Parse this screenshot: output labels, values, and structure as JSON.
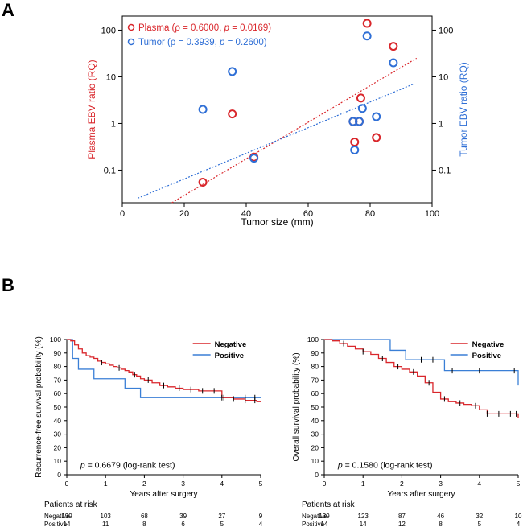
{
  "panel_labels": {
    "a": "A",
    "b": "B"
  },
  "colors": {
    "plasma": "#d9262b",
    "tumor": "#2f6fd6",
    "negative": "#d9262b",
    "positive": "#3a7fd6",
    "censor": "#000000"
  },
  "chart_data": [
    {
      "id": "scatter",
      "type": "scatter",
      "xlabel": "Tumor size (mm)",
      "ylabel_left": "Plasma EBV ratio (RQ)",
      "ylabel_right": "Tumor EBV ratio (RQ)",
      "x_range": [
        0,
        100
      ],
      "y_scale": "log",
      "y_range": [
        0.02,
        200
      ],
      "x_ticks": [
        0,
        20,
        40,
        60,
        80,
        100
      ],
      "y_ticks": [
        {
          "value": 0.1,
          "label": "0.1"
        },
        {
          "value": 1,
          "label": "1"
        },
        {
          "value": 10,
          "label": "10"
        },
        {
          "value": 100,
          "label": "100"
        }
      ],
      "legend": [
        {
          "series": "plasma",
          "prefix": "Plasma (",
          "rho_label": "ρ = 0.6000, ",
          "p_symbol": "p",
          "p_label": " = 0.0169)"
        },
        {
          "series": "tumor",
          "prefix": "Tumor (",
          "rho_label": "ρ = 0.3939, ",
          "p_symbol": "p",
          "p_label": " = 0.2600)"
        }
      ],
      "series": [
        {
          "name": "Plasma",
          "key": "plasma",
          "points": [
            [
              26,
              0.055
            ],
            [
              35.5,
              1.6
            ],
            [
              42.5,
              0.19
            ],
            [
              74.5,
              1.1
            ],
            [
              75,
              0.4
            ],
            [
              76.5,
              1.1
            ],
            [
              77,
              3.5
            ],
            [
              79,
              140
            ],
            [
              82,
              0.5
            ],
            [
              87.5,
              45
            ]
          ]
        },
        {
          "name": "Tumor",
          "key": "tumor",
          "points": [
            [
              26,
              2.0
            ],
            [
              35.5,
              13
            ],
            [
              42.5,
              0.18
            ],
            [
              74.5,
              1.1
            ],
            [
              75,
              0.27
            ],
            [
              76.5,
              1.1
            ],
            [
              77.5,
              2.1
            ],
            [
              79,
              75
            ],
            [
              82,
              1.4
            ],
            [
              87.5,
              20
            ]
          ]
        }
      ],
      "trendlines": [
        {
          "key": "plasma",
          "from": [
            16,
            0.02
          ],
          "to": [
            95,
            25
          ]
        },
        {
          "key": "tumor",
          "from": [
            5,
            0.025
          ],
          "to": [
            94,
            7
          ]
        }
      ]
    },
    {
      "id": "km_rfs",
      "type": "line",
      "ylabel": "Recurrence-free survival probability (%)",
      "xlabel": "Years after surgery",
      "x_range": [
        0,
        5
      ],
      "y_range": [
        0,
        100
      ],
      "x_ticks": [
        0,
        1,
        2,
        3,
        4,
        5
      ],
      "y_ticks": [
        0,
        10,
        20,
        30,
        40,
        50,
        60,
        70,
        80,
        90,
        100
      ],
      "legend": [
        "Negative",
        "Positive"
      ],
      "annotation": {
        "p": "p",
        "text": " = 0.6679 (log-rank test)"
      },
      "series": [
        {
          "name": "Negative",
          "key": "negative",
          "x": [
            0,
            0.1,
            0.2,
            0.3,
            0.4,
            0.5,
            0.6,
            0.7,
            0.8,
            0.9,
            1.0,
            1.1,
            1.2,
            1.3,
            1.4,
            1.5,
            1.6,
            1.7,
            1.8,
            1.9,
            2.0,
            2.2,
            2.4,
            2.6,
            2.8,
            3.0,
            3.2,
            3.4,
            3.6,
            3.8,
            4.0,
            4.3,
            4.6,
            4.9,
            5.0
          ],
          "y": [
            100,
            99,
            96,
            93,
            90,
            88,
            87,
            86,
            84,
            83,
            82,
            81,
            80,
            79,
            78,
            77,
            76,
            74,
            73,
            71,
            70,
            68,
            66,
            65,
            64,
            63,
            63,
            62,
            62,
            62,
            57,
            56,
            55,
            54,
            54
          ],
          "censor": [
            0.9,
            1.35,
            1.75,
            2.1,
            2.5,
            2.9,
            3.2,
            3.5,
            3.8,
            4.05,
            4.3,
            4.6,
            4.85
          ]
        },
        {
          "name": "Positive",
          "key": "positive",
          "x": [
            0,
            0.15,
            0.3,
            0.7,
            1.5,
            1.9,
            4.0,
            5.0
          ],
          "y": [
            100,
            86,
            78,
            71,
            64,
            57,
            57,
            57
          ],
          "censor": [
            4.0,
            4.6,
            4.85
          ]
        }
      ],
      "risk_table": {
        "title": "Patients at risk",
        "times": [
          0,
          1,
          2,
          3,
          4,
          5
        ],
        "rows": [
          {
            "label": "Negative",
            "values": [
              139,
              103,
              68,
              39,
              27,
              9
            ]
          },
          {
            "label": "Positive",
            "values": [
              14,
              11,
              8,
              6,
              5,
              4
            ]
          }
        ]
      }
    },
    {
      "id": "km_os",
      "type": "line",
      "ylabel": "Overall survival probability (%)",
      "xlabel": "Years after surgery",
      "x_range": [
        0,
        5
      ],
      "y_range": [
        0,
        100
      ],
      "x_ticks": [
        0,
        1,
        2,
        3,
        4,
        5
      ],
      "y_ticks": [
        0,
        10,
        20,
        30,
        40,
        50,
        60,
        70,
        80,
        90,
        100
      ],
      "legend": [
        "Negative",
        "Positive"
      ],
      "annotation": {
        "p": "p",
        "text": " = 0.1580 (log-rank test)"
      },
      "series": [
        {
          "name": "Negative",
          "key": "negative",
          "x": [
            0,
            0.2,
            0.4,
            0.6,
            0.8,
            1.0,
            1.2,
            1.4,
            1.6,
            1.8,
            2.0,
            2.2,
            2.4,
            2.6,
            2.8,
            3.0,
            3.2,
            3.4,
            3.6,
            3.8,
            4.0,
            4.2,
            4.4,
            4.6,
            4.8,
            5.0
          ],
          "y": [
            100,
            99,
            97,
            95,
            93,
            91,
            89,
            86,
            83,
            80,
            78,
            76,
            73,
            68,
            61,
            56,
            54,
            53,
            52,
            51,
            48,
            45,
            45,
            45,
            45,
            42
          ],
          "censor": [
            0.5,
            1.0,
            1.5,
            1.9,
            2.3,
            2.7,
            3.1,
            3.5,
            3.9,
            4.2,
            4.5,
            4.8,
            4.95
          ]
        },
        {
          "name": "Positive",
          "key": "positive",
          "x": [
            0,
            1.6,
            1.7,
            2.1,
            3.1,
            5.0
          ],
          "y": [
            100,
            100,
            92,
            85,
            77,
            66
          ],
          "censor": [
            2.5,
            2.8,
            3.3,
            4.0,
            4.9
          ]
        }
      ],
      "risk_table": {
        "title": "Patients at risk",
        "times": [
          0,
          1,
          2,
          3,
          4,
          5
        ],
        "rows": [
          {
            "label": "Negative",
            "values": [
              139,
              123,
              87,
              46,
              32,
              10
            ]
          },
          {
            "label": "Positive",
            "values": [
              14,
              14,
              12,
              8,
              5,
              4
            ]
          }
        ]
      }
    }
  ]
}
